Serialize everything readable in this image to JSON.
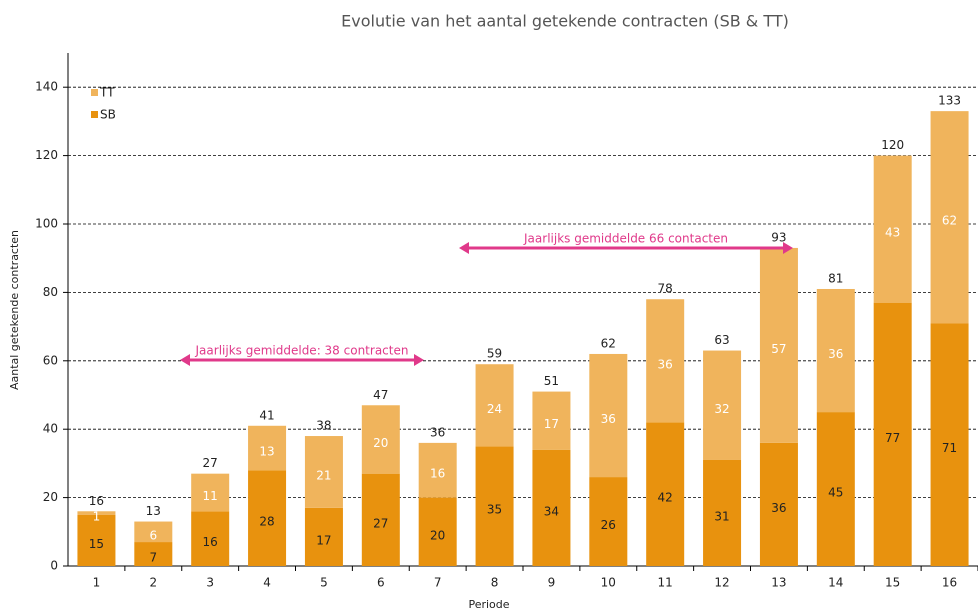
{
  "chart_data": {
    "type": "stacked_bar",
    "title": "Evolutie van het aantal getekende contracten (SB & TT)",
    "x_label": "Periode",
    "y_label": "Aantal getekende contracten",
    "categories": [
      "1",
      "2",
      "3",
      "4",
      "5",
      "6",
      "7",
      "8",
      "9",
      "10",
      "11",
      "12",
      "13",
      "14",
      "15",
      "16"
    ],
    "series": [
      {
        "name": "SB",
        "color": "#e8920e",
        "values": [
          15,
          7,
          16,
          28,
          17,
          27,
          20,
          35,
          34,
          26,
          42,
          31,
          36,
          45,
          77,
          71
        ]
      },
      {
        "name": "TT",
        "color": "#f0b45c",
        "values": [
          1,
          6,
          11,
          13,
          21,
          20,
          16,
          24,
          17,
          36,
          36,
          32,
          57,
          36,
          43,
          62
        ]
      }
    ],
    "totals": [
      16,
      13,
      27,
      41,
      38,
      47,
      36,
      59,
      51,
      62,
      78,
      63,
      93,
      81,
      120,
      133
    ],
    "ylim": [
      0,
      150
    ],
    "yticks": [
      0,
      20,
      40,
      60,
      80,
      100,
      120,
      140
    ],
    "grid": true,
    "legend": "top-left",
    "annotations": [
      {
        "text": "Jaarlijks gemiddelde: 38 contracten",
        "color": "#e0398a"
      },
      {
        "text": "Jaarlijks gemiddelde 66 contacten",
        "color": "#e0398a"
      }
    ]
  }
}
